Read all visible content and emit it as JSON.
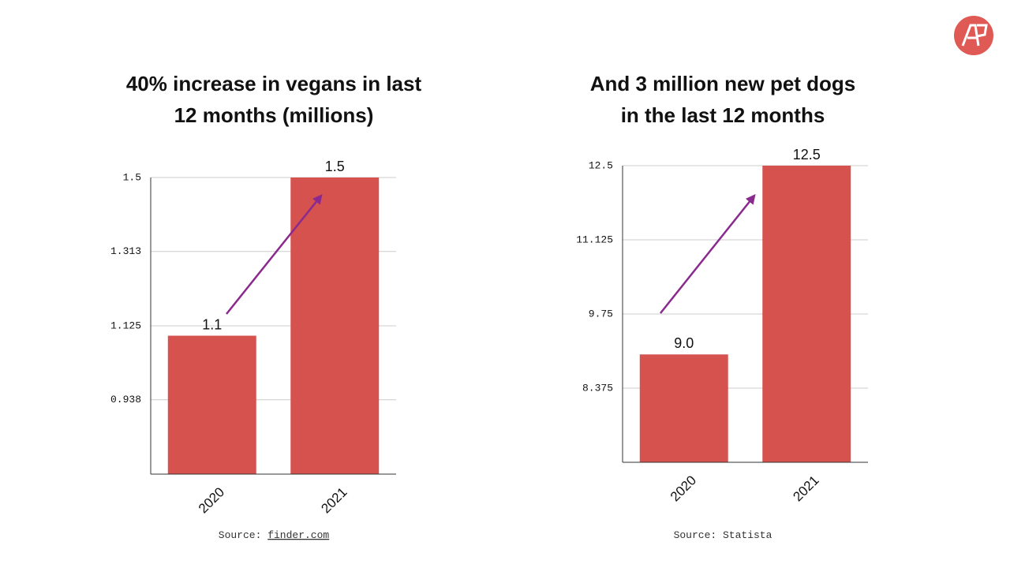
{
  "chart_data": [
    {
      "type": "bar",
      "title": [
        "40% increase in vegans in last",
        "12 months (millions)"
      ],
      "categories": [
        "2020",
        "2021"
      ],
      "values": [
        1.1,
        1.5
      ],
      "color": "#d6524f",
      "ylim": [
        0.75,
        1.5
      ],
      "yticks": [
        0.938,
        1.125,
        1.313,
        1.5
      ],
      "grid": true,
      "source_label": "Source:",
      "source_link": "finder.com"
    },
    {
      "type": "bar",
      "title": [
        "And 3 million new pet dogs",
        "in the last 12 months"
      ],
      "categories": [
        "2020",
        "2021"
      ],
      "values": [
        9,
        12.5
      ],
      "value_labels": [
        "9.0",
        "12.5"
      ],
      "color": "#d6524f",
      "ylim": [
        7,
        12.5
      ],
      "yticks": [
        8.375,
        9.75,
        11.125,
        12.5
      ],
      "grid": true,
      "source_label": "Source:",
      "source_link": "Statista"
    }
  ]
}
